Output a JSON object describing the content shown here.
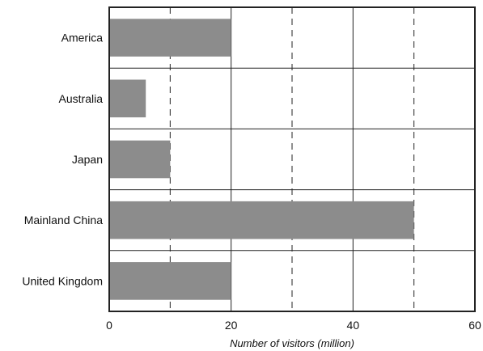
{
  "chart_data": {
    "type": "bar",
    "orientation": "horizontal",
    "categories": [
      "America",
      "Australia",
      "Japan",
      "Mainland China",
      "United Kingdom"
    ],
    "values": [
      20,
      6,
      10,
      50,
      20
    ],
    "xlabel": "Number of visitors (million)",
    "ylabel": "",
    "xlim": [
      0,
      60
    ],
    "xticks": [
      "0",
      "20",
      "40",
      "60"
    ],
    "grid": true,
    "bar_color": "#8c8c8c"
  }
}
